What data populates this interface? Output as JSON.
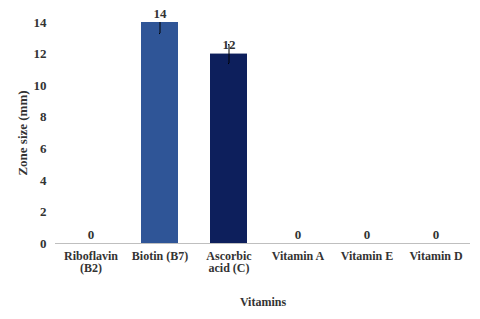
{
  "chart_data": {
    "type": "bar",
    "categories": [
      "Riboflavin (B2)",
      "Biotin (B7)",
      "Ascorbic acid (C)",
      "Vitamin A",
      "Vitamin E",
      "Vitamin D"
    ],
    "values": [
      0,
      14,
      12,
      0,
      0,
      0
    ],
    "errors": [
      0,
      0.7,
      0.6,
      0,
      0,
      0
    ],
    "colors": [
      "#2f5597",
      "#2f5597",
      "#0d1f5c",
      "#2f5597",
      "#2f5597",
      "#2f5597"
    ],
    "x_label": "Vitamins",
    "y_label": "Zone size (mm)",
    "ylim": [
      0,
      14
    ],
    "yticks": [
      0,
      2,
      4,
      6,
      8,
      10,
      12,
      14
    ],
    "grid": false,
    "data_labels": true
  }
}
